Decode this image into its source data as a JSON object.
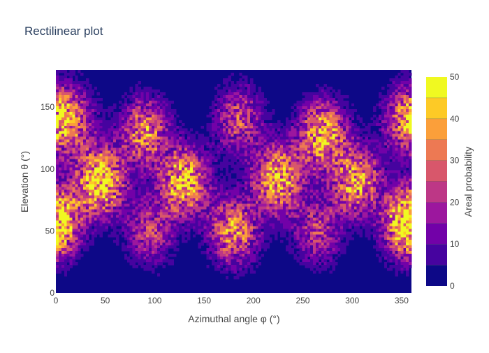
{
  "chart_data": {
    "type": "heatmap",
    "subtype": "filled-contour",
    "title": "Rectilinear plot",
    "xlabel": "Azimuthal angle φ (°)",
    "ylabel": "Elevation θ (°)",
    "xlim": [
      0,
      360
    ],
    "ylim": [
      0,
      180
    ],
    "x_ticks": [
      0,
      50,
      100,
      150,
      200,
      250,
      300,
      350
    ],
    "y_ticks": [
      0,
      50,
      100,
      150
    ],
    "colorbar": {
      "title": "Areal probability",
      "range": [
        0,
        50
      ],
      "ticks": [
        0,
        10,
        20,
        30,
        40,
        50
      ],
      "levels": [
        0,
        5,
        10,
        15,
        20,
        25,
        30,
        35,
        40,
        45,
        50
      ],
      "colors": [
        "#0d0887",
        "#46039f",
        "#7201a8",
        "#9c179e",
        "#bd3786",
        "#d8576b",
        "#ed7953",
        "#fb9f3a",
        "#fdca26",
        "#f0f921"
      ]
    },
    "clusters": [
      {
        "phi": 0,
        "theta": 58,
        "peak": 30
      },
      {
        "phi": 15,
        "theta": 140,
        "peak": 24
      },
      {
        "phi": 45,
        "theta": 90,
        "peak": 46
      },
      {
        "phi": 90,
        "theta": 130,
        "peak": 32
      },
      {
        "phi": 95,
        "theta": 50,
        "peak": 22
      },
      {
        "phi": 130,
        "theta": 90,
        "peak": 40
      },
      {
        "phi": 180,
        "theta": 50,
        "peak": 34
      },
      {
        "phi": 185,
        "theta": 140,
        "peak": 24
      },
      {
        "phi": 225,
        "theta": 92,
        "peak": 40
      },
      {
        "phi": 265,
        "theta": 50,
        "peak": 22
      },
      {
        "phi": 270,
        "theta": 128,
        "peak": 38
      },
      {
        "phi": 305,
        "theta": 90,
        "peak": 36
      },
      {
        "phi": 355,
        "theta": 55,
        "peak": 26
      },
      {
        "phi": 355,
        "theta": 140,
        "peak": 26
      }
    ]
  }
}
